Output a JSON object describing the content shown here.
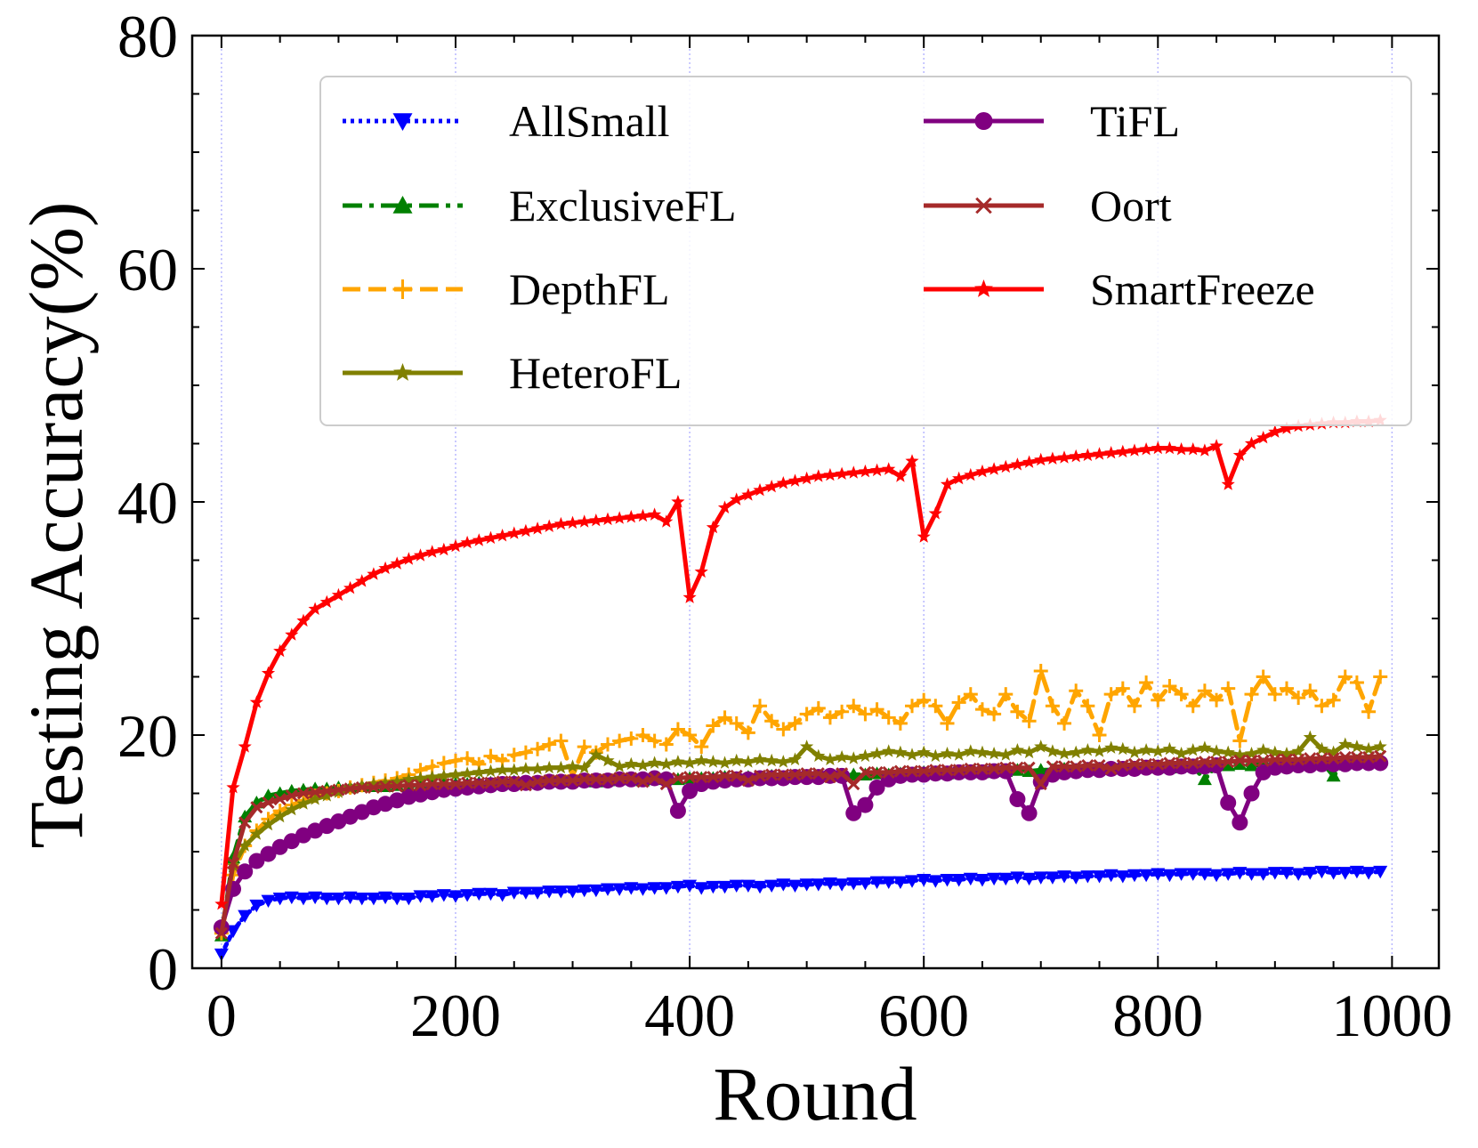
{
  "chart_data": {
    "type": "line",
    "title": "",
    "xlabel": "Round",
    "ylabel": "Testing Accuracy(%)",
    "xlim": [
      -25,
      1040
    ],
    "ylim": [
      0,
      80
    ],
    "xticks": [
      0,
      200,
      400,
      600,
      800,
      1000
    ],
    "xtick_labels": [
      "0",
      "200",
      "400",
      "600",
      "800",
      "1000"
    ],
    "yticks": [
      0,
      20,
      40,
      60,
      80
    ],
    "ytick_labels": [
      "0",
      "20",
      "40",
      "60",
      "80"
    ],
    "grid": "vertical dotted",
    "legend_position": "top-right",
    "x": [
      0,
      10,
      20,
      30,
      40,
      50,
      60,
      70,
      80,
      90,
      100,
      110,
      120,
      130,
      140,
      150,
      160,
      170,
      180,
      190,
      200,
      210,
      220,
      230,
      240,
      250,
      260,
      270,
      280,
      290,
      300,
      310,
      320,
      330,
      340,
      350,
      360,
      370,
      380,
      390,
      400,
      410,
      420,
      430,
      440,
      450,
      460,
      470,
      480,
      490,
      500,
      510,
      520,
      530,
      540,
      550,
      560,
      570,
      580,
      590,
      600,
      610,
      620,
      630,
      640,
      650,
      660,
      670,
      680,
      690,
      700,
      710,
      720,
      730,
      740,
      750,
      760,
      770,
      780,
      790,
      800,
      810,
      820,
      830,
      840,
      850,
      860,
      870,
      880,
      890,
      900,
      910,
      920,
      930,
      940,
      950,
      960,
      970,
      980,
      990
    ],
    "series": [
      {
        "name": "AllSmall",
        "color": "#0000ff",
        "linestyle": "dotted",
        "marker": "triangle-down",
        "values": [
          1.2,
          3.2,
          4.5,
          5.4,
          5.8,
          6.0,
          6.1,
          6.0,
          6.1,
          6.0,
          6.0,
          6.1,
          6.0,
          6.0,
          6.1,
          6.0,
          6.0,
          6.2,
          6.2,
          6.3,
          6.2,
          6.3,
          6.4,
          6.4,
          6.3,
          6.5,
          6.5,
          6.5,
          6.6,
          6.6,
          6.6,
          6.7,
          6.7,
          6.8,
          6.8,
          6.9,
          6.8,
          6.9,
          6.9,
          7.0,
          7.1,
          6.9,
          7.0,
          7.0,
          7.1,
          7.1,
          7.0,
          7.1,
          7.2,
          7.1,
          7.2,
          7.2,
          7.3,
          7.2,
          7.3,
          7.3,
          7.4,
          7.4,
          7.4,
          7.5,
          7.6,
          7.5,
          7.6,
          7.6,
          7.7,
          7.6,
          7.7,
          7.7,
          7.8,
          7.7,
          7.8,
          7.8,
          7.9,
          7.8,
          7.9,
          7.9,
          8.0,
          7.9,
          8.0,
          8.0,
          8.1,
          8.0,
          8.1,
          8.1,
          8.1,
          8.0,
          8.1,
          8.2,
          8.1,
          8.1,
          8.2,
          8.2,
          8.1,
          8.2,
          8.3,
          8.2,
          8.2,
          8.3,
          8.2,
          8.3
        ]
      },
      {
        "name": "ExclusiveFL",
        "color": "#008000",
        "linestyle": "dashdot",
        "marker": "triangle-up",
        "values": [
          2.8,
          9.5,
          13.0,
          14.2,
          14.8,
          15.0,
          15.2,
          15.3,
          15.4,
          15.4,
          15.5,
          15.5,
          15.6,
          15.6,
          15.6,
          15.7,
          15.6,
          15.7,
          15.7,
          15.8,
          15.8,
          15.8,
          15.9,
          15.9,
          15.9,
          16.0,
          16.0,
          16.0,
          16.1,
          16.0,
          16.1,
          16.1,
          16.0,
          16.1,
          16.2,
          16.2,
          16.1,
          16.2,
          16.3,
          16.2,
          16.3,
          16.3,
          16.3,
          16.4,
          16.3,
          16.4,
          16.4,
          16.5,
          16.4,
          16.5,
          16.5,
          16.5,
          16.6,
          16.5,
          16.6,
          16.6,
          16.7,
          16.6,
          16.7,
          16.7,
          16.8,
          16.8,
          16.7,
          16.8,
          16.9,
          16.8,
          16.9,
          16.9,
          17.0,
          16.9,
          17.0,
          17.0,
          17.1,
          17.0,
          17.1,
          17.1,
          17.2,
          17.1,
          17.2,
          17.2,
          17.3,
          17.2,
          17.3,
          17.3,
          16.2,
          17.4,
          17.4,
          17.5,
          17.4,
          17.5,
          17.5,
          17.6,
          17.5,
          17.6,
          17.7,
          16.5,
          17.7,
          17.8,
          17.8,
          17.9
        ]
      },
      {
        "name": "DepthFL",
        "color": "#ffa500",
        "linestyle": "dashed",
        "marker": "plus",
        "values": [
          3.0,
          8.0,
          10.5,
          11.8,
          12.8,
          13.5,
          14.0,
          14.4,
          14.8,
          15.0,
          15.2,
          15.5,
          15.7,
          15.9,
          16.1,
          16.3,
          16.6,
          17.0,
          17.3,
          17.6,
          17.8,
          18.0,
          17.5,
          18.2,
          17.8,
          18.3,
          18.5,
          18.8,
          19.2,
          19.5,
          16.5,
          19.0,
          18.5,
          19.2,
          19.5,
          19.7,
          20.0,
          19.5,
          19.2,
          20.5,
          20.0,
          19.0,
          20.8,
          21.5,
          21.0,
          20.2,
          22.5,
          21.2,
          20.5,
          21.0,
          21.8,
          22.3,
          21.5,
          22.0,
          22.5,
          21.8,
          22.2,
          21.5,
          21.0,
          22.5,
          23.0,
          22.5,
          21.0,
          22.8,
          23.5,
          22.2,
          21.8,
          23.5,
          22.0,
          21.2,
          25.5,
          22.5,
          21.0,
          23.8,
          22.5,
          20.0,
          23.5,
          24.0,
          22.5,
          24.5,
          23.0,
          24.2,
          23.5,
          22.5,
          23.8,
          23.0,
          24.0,
          19.5,
          23.5,
          25.0,
          23.5,
          24.0,
          23.2,
          23.8,
          22.5,
          23.0,
          25.0,
          24.5,
          22.0,
          25.0
        ]
      },
      {
        "name": "HeteroFL",
        "color": "#808000",
        "linestyle": "solid",
        "marker": "star",
        "values": [
          3.2,
          8.8,
          10.5,
          11.5,
          12.3,
          13.0,
          13.6,
          14.1,
          14.5,
          14.8,
          15.1,
          15.4,
          15.6,
          15.8,
          15.9,
          16.0,
          16.2,
          16.3,
          16.4,
          16.5,
          16.6,
          16.7,
          16.8,
          16.9,
          17.0,
          17.0,
          17.1,
          17.1,
          17.2,
          17.2,
          17.3,
          17.2,
          18.3,
          17.8,
          17.3,
          17.5,
          17.4,
          17.6,
          17.5,
          17.7,
          17.6,
          17.8,
          17.7,
          17.6,
          17.8,
          17.7,
          17.9,
          17.8,
          17.7,
          17.9,
          19.0,
          18.2,
          17.9,
          18.1,
          18.0,
          18.2,
          18.4,
          18.6,
          18.5,
          18.3,
          18.5,
          18.2,
          18.4,
          18.3,
          18.6,
          18.5,
          18.4,
          18.3,
          18.7,
          18.5,
          19.0,
          18.6,
          18.4,
          18.5,
          18.7,
          18.6,
          18.9,
          18.8,
          18.5,
          18.7,
          18.6,
          18.8,
          18.4,
          18.7,
          18.9,
          18.6,
          18.5,
          18.3,
          18.4,
          18.7,
          18.5,
          18.4,
          18.6,
          19.8,
          18.8,
          18.5,
          19.2,
          19.0,
          18.8,
          19.0
        ]
      },
      {
        "name": "TiFL",
        "color": "#800080",
        "linestyle": "solid",
        "marker": "circle",
        "values": [
          3.5,
          6.8,
          8.3,
          9.2,
          9.8,
          10.4,
          10.9,
          11.4,
          11.8,
          12.2,
          12.6,
          13.0,
          13.4,
          13.8,
          14.1,
          14.4,
          14.7,
          14.9,
          15.1,
          15.3,
          15.4,
          15.5,
          15.6,
          15.7,
          15.8,
          15.8,
          15.9,
          15.9,
          16.0,
          16.0,
          16.0,
          16.1,
          16.1,
          16.1,
          16.2,
          16.2,
          16.2,
          16.3,
          16.2,
          13.5,
          15.2,
          15.8,
          16.0,
          16.1,
          16.2,
          16.2,
          16.3,
          16.3,
          16.3,
          16.4,
          16.4,
          16.4,
          16.5,
          16.5,
          13.3,
          14.0,
          15.5,
          16.2,
          16.5,
          16.6,
          16.6,
          16.7,
          16.7,
          16.8,
          16.8,
          16.8,
          16.9,
          16.9,
          14.5,
          13.3,
          16.0,
          16.6,
          16.8,
          16.9,
          17.0,
          17.0,
          17.1,
          17.1,
          17.1,
          17.2,
          17.2,
          17.2,
          17.3,
          17.3,
          17.3,
          17.4,
          14.2,
          12.5,
          15.0,
          16.8,
          17.2,
          17.3,
          17.4,
          17.4,
          17.5,
          17.5,
          17.5,
          17.6,
          17.6,
          17.6
        ]
      },
      {
        "name": "Oort",
        "color": "#a52a2a",
        "linestyle": "solid",
        "marker": "x",
        "values": [
          3.0,
          9.0,
          12.5,
          13.8,
          14.2,
          14.5,
          14.8,
          15.0,
          15.1,
          15.2,
          15.3,
          15.4,
          15.5,
          15.5,
          15.6,
          15.6,
          15.7,
          15.7,
          15.8,
          15.8,
          15.8,
          15.9,
          15.9,
          15.9,
          16.0,
          16.0,
          15.7,
          16.0,
          16.1,
          16.1,
          16.1,
          16.2,
          16.2,
          16.2,
          16.3,
          16.3,
          16.0,
          16.3,
          15.8,
          16.3,
          16.4,
          16.4,
          16.4,
          16.5,
          16.5,
          16.1,
          16.5,
          16.6,
          16.6,
          16.6,
          16.7,
          16.7,
          16.4,
          16.7,
          15.8,
          16.8,
          16.8,
          16.8,
          16.9,
          16.9,
          16.9,
          17.0,
          17.0,
          17.0,
          17.1,
          17.1,
          17.1,
          17.2,
          17.2,
          17.2,
          15.8,
          17.3,
          17.3,
          17.3,
          17.4,
          17.4,
          17.1,
          17.4,
          17.5,
          17.5,
          17.5,
          17.6,
          17.6,
          17.6,
          17.7,
          17.7,
          17.7,
          17.8,
          17.8,
          17.8,
          17.9,
          17.9,
          17.9,
          18.0,
          18.0,
          18.0,
          18.1,
          18.1,
          18.1,
          18.2
        ]
      },
      {
        "name": "SmartFreeze",
        "color": "#ff0000",
        "linestyle": "solid",
        "marker": "star",
        "values": [
          5.5,
          15.5,
          19.0,
          22.8,
          25.3,
          27.2,
          28.6,
          29.8,
          30.8,
          31.4,
          32.0,
          32.6,
          33.2,
          33.8,
          34.3,
          34.7,
          35.1,
          35.4,
          35.7,
          35.9,
          36.2,
          36.5,
          36.7,
          36.9,
          37.1,
          37.3,
          37.5,
          37.7,
          37.9,
          38.1,
          38.2,
          38.3,
          38.4,
          38.5,
          38.6,
          38.7,
          38.8,
          38.9,
          38.3,
          40.0,
          31.8,
          34.0,
          37.8,
          39.5,
          40.2,
          40.6,
          41.0,
          41.3,
          41.6,
          41.8,
          42.0,
          42.2,
          42.3,
          42.4,
          42.5,
          42.6,
          42.7,
          42.8,
          42.2,
          43.5,
          37.0,
          39.0,
          41.5,
          42.0,
          42.3,
          42.6,
          42.8,
          43.0,
          43.2,
          43.4,
          43.6,
          43.7,
          43.8,
          43.9,
          44.0,
          44.1,
          44.2,
          44.3,
          44.4,
          44.5,
          44.6,
          44.6,
          44.5,
          44.5,
          44.4,
          44.8,
          41.5,
          44.0,
          45.0,
          45.5,
          46.0,
          46.3,
          46.5,
          46.6,
          46.7,
          46.8,
          46.8,
          46.9,
          46.9,
          47.0
        ]
      }
    ]
  }
}
